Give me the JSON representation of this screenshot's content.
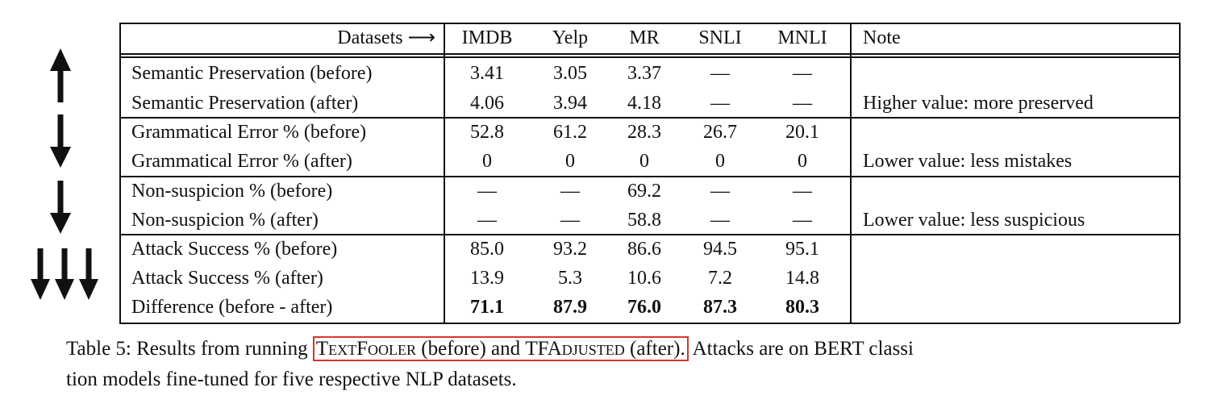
{
  "table": {
    "header": [
      "Datasets ⟶",
      "IMDB",
      "Yelp",
      "MR",
      "SNLI",
      "MNLI",
      "Note"
    ],
    "rows": [
      {
        "cells": [
          "Semantic Preservation (before)",
          "3.41",
          "3.05",
          "3.37",
          "—",
          "—"
        ]
      },
      {
        "cells": [
          "Semantic Preservation (after)",
          "4.06",
          "3.94",
          "4.18",
          "—",
          "—"
        ],
        "note": "Higher value: more preserved"
      },
      {
        "cells": [
          "Grammatical Error % (before)",
          "52.8",
          "61.2",
          "28.3",
          "26.7",
          "20.1"
        ]
      },
      {
        "cells": [
          "Grammatical Error % (after)",
          "0",
          "0",
          "0",
          "0",
          "0"
        ],
        "note": "Lower value: less mistakes"
      },
      {
        "cells": [
          "Non-suspicion % (before)",
          "—",
          "—",
          "69.2",
          "—",
          "—"
        ]
      },
      {
        "cells": [
          "Non-suspicion % (after)",
          "—",
          "—",
          "58.8",
          "—",
          "—"
        ],
        "note": "Lower value: less suspicious"
      },
      {
        "cells": [
          "Attack Success % (before)",
          "85.0",
          "93.2",
          "86.6",
          "94.5",
          "95.1"
        ]
      },
      {
        "cells": [
          "Attack Success % (after)",
          "13.9",
          "5.3",
          "10.6",
          "7.2",
          "14.8"
        ]
      },
      {
        "cells": [
          "Difference (before - after)",
          "71.1",
          "87.9",
          "76.0",
          "87.3",
          "80.3"
        ]
      }
    ]
  },
  "caption": {
    "lead": "Table 5: Results from running",
    "highlight": {
      "tool1": "TextFooler",
      "mid": "(before) and",
      "tool2": "TFAdjusted",
      "end": "(after)."
    },
    "rest": "Attacks are on BERT classi",
    "line2": "tion models fine-tuned for five respective NLP datasets."
  }
}
